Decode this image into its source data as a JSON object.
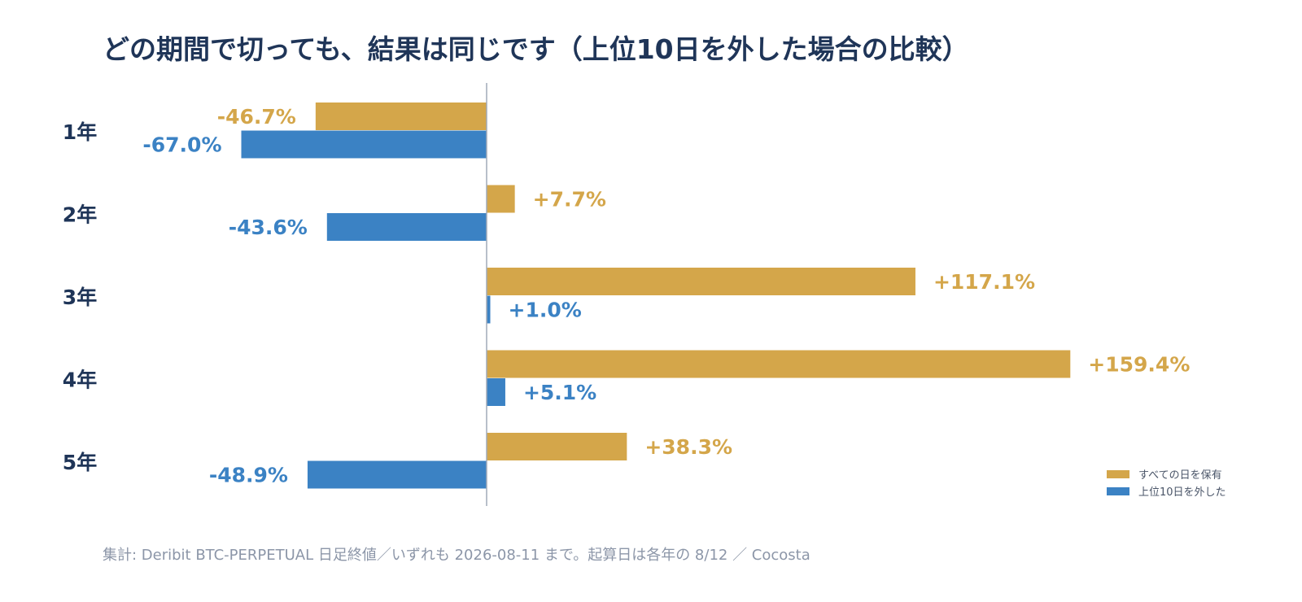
{
  "title": "どの期間で切っても、結果は同じです（上位10日を外した場合の比較）",
  "footnote": "集計: Deribit BTC-PERPETUAL 日足終値／いずれも 2026-08-11 まで。起算日は各年の 8/12 ／ Cocosta",
  "colors": {
    "hold_all": "#d4a64a",
    "exclude_top10": "#3b82c4",
    "axis": "#a0aab8"
  },
  "chart_data": {
    "type": "bar",
    "orientation": "horizontal",
    "categories": [
      "1年",
      "2年",
      "3年",
      "4年",
      "5年"
    ],
    "series": [
      {
        "name": "すべての日を保有",
        "values": [
          -46.7,
          7.7,
          117.1,
          159.4,
          38.3
        ]
      },
      {
        "name": "上位10日を外した",
        "values": [
          -67.0,
          -43.6,
          1.0,
          5.1,
          -48.9
        ]
      }
    ],
    "value_labels": [
      [
        "-46.7%",
        "+7.7%",
        "+117.1%",
        "+159.4%",
        "+38.3%"
      ],
      [
        "-67.0%",
        "-43.6%",
        "+1.0%",
        "+5.1%",
        "-48.9%"
      ]
    ],
    "unit": "%",
    "legend_position": "bottom-right",
    "grid": false
  }
}
